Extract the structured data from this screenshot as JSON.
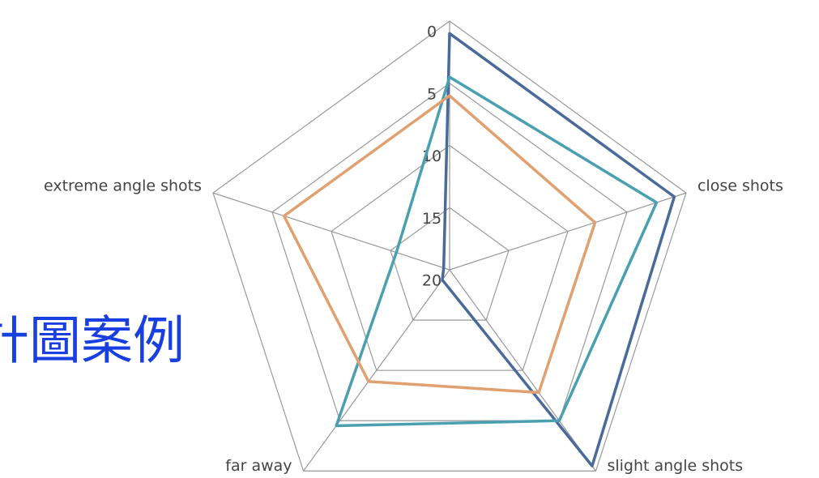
{
  "chart_data": {
    "type": "radar",
    "heading": "計圖案例",
    "categories": [
      null,
      "close shots",
      "slight angle shots",
      "far away",
      "extreme angle shots"
    ],
    "series": [
      {
        "color": "#4a6a9a",
        "values": [
          1,
          1,
          0.5,
          19,
          19.5
        ]
      },
      {
        "color": "#4aa0b0",
        "values": [
          4.5,
          2.5,
          5,
          4.5,
          15.5
        ]
      },
      {
        "color": "#e0a070",
        "values": [
          6,
          7.7,
          7.8,
          8.9,
          6
        ]
      }
    ],
    "ylim": [
      0,
      20
    ],
    "yticks": [
      0,
      5,
      10,
      15,
      20
    ],
    "reversed": true,
    "grid": true
  }
}
